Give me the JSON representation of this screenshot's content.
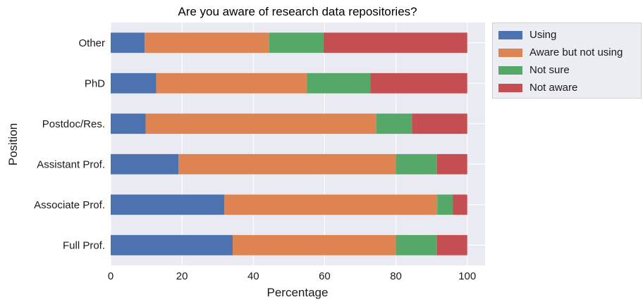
{
  "chart_data": {
    "type": "bar",
    "orientation": "horizontal",
    "stacked": true,
    "title": "Are you aware of research data repositories?",
    "xlabel": "Percentage",
    "ylabel": "Position",
    "xlim": [
      0,
      105
    ],
    "xticks": [
      0,
      20,
      40,
      60,
      80,
      100
    ],
    "grid": true,
    "legend_position": "outside-top-right",
    "categories": [
      "Other",
      "PhD",
      "Postdoc/Res.",
      "Assistant Prof.",
      "Associate Prof.",
      "Full Prof."
    ],
    "series": [
      {
        "name": "Using",
        "color": "#4c72b0",
        "values": [
          9.5,
          12.8,
          9.8,
          19.0,
          31.9,
          34.2
        ]
      },
      {
        "name": "Aware but not using",
        "color": "#dd8452",
        "values": [
          35.0,
          42.2,
          64.7,
          61.0,
          59.7,
          45.8
        ]
      },
      {
        "name": "Not sure",
        "color": "#55a868",
        "values": [
          15.2,
          17.8,
          10.0,
          11.5,
          4.4,
          11.5
        ]
      },
      {
        "name": "Not aware",
        "color": "#c44e52",
        "values": [
          40.3,
          27.2,
          15.5,
          8.5,
          4.0,
          8.5
        ]
      }
    ]
  }
}
